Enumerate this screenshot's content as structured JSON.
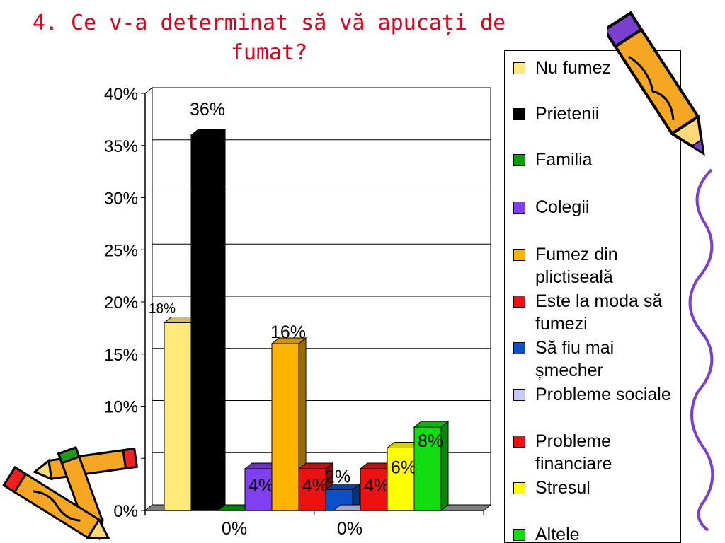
{
  "slide": {
    "title": "4. Ce v-a determinat să vă apucați de fumat?"
  },
  "chart_data": {
    "type": "bar",
    "ylim": [
      0,
      40
    ],
    "yticks": [
      "0%",
      "5%",
      "10%",
      "15%",
      "20%",
      "25%",
      "30%",
      "35%",
      "40%"
    ],
    "categories": [
      "",
      ""
    ],
    "grid": true,
    "legend_position": "right",
    "series": [
      {
        "name": "Nu fumez",
        "category": 0,
        "value": 18,
        "label": "18%",
        "color": "#ffe97a"
      },
      {
        "name": "Prietenii",
        "category": 0,
        "value": 36,
        "label": "36%",
        "color": "#000000"
      },
      {
        "name": "Familia",
        "category": 0,
        "value": 0,
        "label": "0%",
        "color": "#00a000"
      },
      {
        "name": "Colegii",
        "category": 0,
        "value": 4,
        "label": "4%",
        "color": "#8040f0"
      },
      {
        "name": "Fumez din plictiseală",
        "category": 0,
        "value": 16,
        "label": "16%",
        "color": "#ffb400"
      },
      {
        "name": "Este la moda să fumezi",
        "category": 0,
        "value": 4,
        "label": "4%",
        "color": "#ee1111"
      },
      {
        "name": "Să fiu mai șmecher",
        "category": 0,
        "value": 2,
        "label": "2%",
        "color": "#0a50c8"
      },
      {
        "name": "Probleme sociale",
        "category": 1,
        "value": 0,
        "label": "0%",
        "color": "#c8c8f8"
      },
      {
        "name": "Probleme financiare",
        "category": 1,
        "value": 4,
        "label": "4%",
        "color": "#ee1111"
      },
      {
        "name": "Stresul",
        "category": 1,
        "value": 6,
        "label": "6%",
        "color": "#ffff00"
      },
      {
        "name": "Altele",
        "category": 1,
        "value": 8,
        "label": "8%",
        "color": "#11dd11"
      }
    ]
  },
  "decorations": {
    "pencil_top_right": "pencil-icon",
    "pencil_bottom_left": "pencils-icon",
    "squiggle_right": "squiggle-line"
  }
}
